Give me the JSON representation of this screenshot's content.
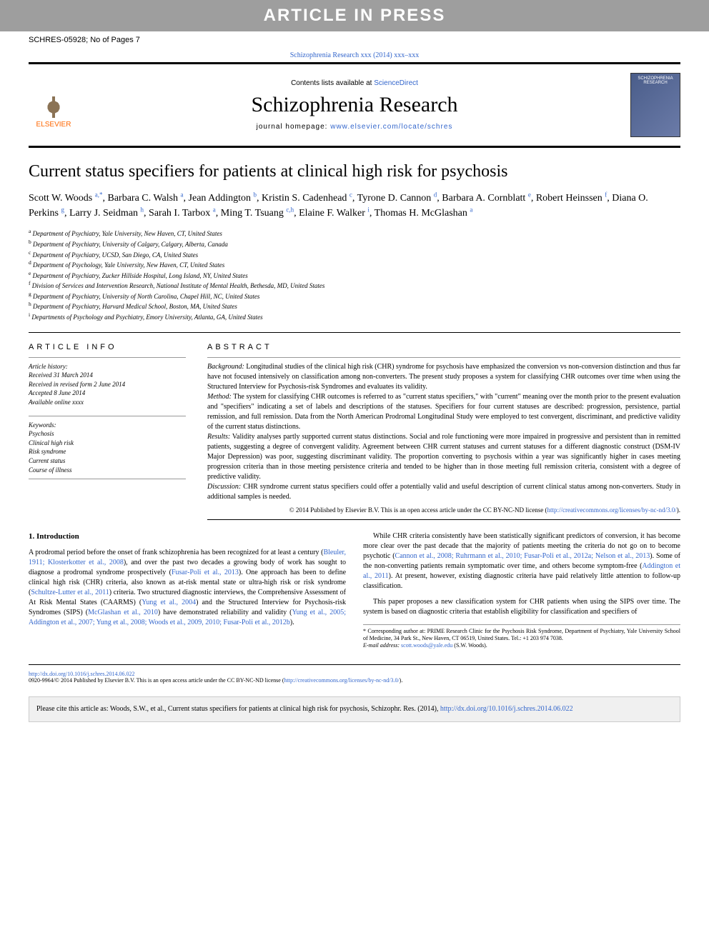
{
  "banner": "ARTICLE IN PRESS",
  "header": {
    "left": "SCHRES-05928; No of Pages 7",
    "citation": "Schizophrenia Research xxx (2014) xxx–xxx"
  },
  "journalBox": {
    "publisher": "ELSEVIER",
    "contentsLine": "Contents lists available at ",
    "contentsLink": "ScienceDirect",
    "journalName": "Schizophrenia Research",
    "homepageLabel": "journal homepage: ",
    "homepageUrl": "www.elsevier.com/locate/schres"
  },
  "title": "Current status specifiers for patients at clinical high risk for psychosis",
  "authors": [
    {
      "name": "Scott W. Woods ",
      "aff": "a,*"
    },
    {
      "name": ", Barbara C. Walsh ",
      "aff": "a"
    },
    {
      "name": ", Jean Addington ",
      "aff": "b"
    },
    {
      "name": ", Kristin S. Cadenhead ",
      "aff": "c"
    },
    {
      "name": ", Tyrone D. Cannon ",
      "aff": "d"
    },
    {
      "name": ", Barbara A. Cornblatt ",
      "aff": "e"
    },
    {
      "name": ", Robert Heinssen ",
      "aff": "f"
    },
    {
      "name": ", Diana O. Perkins ",
      "aff": "g"
    },
    {
      "name": ", Larry J. Seidman ",
      "aff": "h"
    },
    {
      "name": ", Sarah I. Tarbox ",
      "aff": "a"
    },
    {
      "name": ", Ming T. Tsuang ",
      "aff": "c,h"
    },
    {
      "name": ", Elaine F. Walker ",
      "aff": "i"
    },
    {
      "name": ", Thomas H. McGlashan ",
      "aff": "a"
    }
  ],
  "affiliations": [
    {
      "sup": "a",
      "text": " Department of Psychiatry, Yale University, New Haven, CT, United States"
    },
    {
      "sup": "b",
      "text": " Department of Psychiatry, University of Calgary, Calgary, Alberta, Canada"
    },
    {
      "sup": "c",
      "text": " Department of Psychiatry, UCSD, San Diego, CA, United States"
    },
    {
      "sup": "d",
      "text": " Department of Psychology, Yale University, New Haven, CT, United States"
    },
    {
      "sup": "e",
      "text": " Department of Psychiatry, Zucker Hillside Hospital, Long Island, NY, United States"
    },
    {
      "sup": "f",
      "text": " Division of Services and Intervention Research, National Institute of Mental Health, Bethesda, MD, United States"
    },
    {
      "sup": "g",
      "text": " Department of Psychiatry, University of North Carolina, Chapel Hill, NC, United States"
    },
    {
      "sup": "h",
      "text": " Department of Psychiatry, Harvard Medical School, Boston, MA, United States"
    },
    {
      "sup": "i",
      "text": " Departments of Psychology and Psychiatry, Emory University, Atlanta, GA, United States"
    }
  ],
  "articleInfo": {
    "header": "ARTICLE INFO",
    "historyLabel": "Article history:",
    "history": [
      "Received 31 March 2014",
      "Received in revised form 2 June 2014",
      "Accepted 8 June 2014",
      "Available online xxxx"
    ],
    "keywordsLabel": "Keywords:",
    "keywords": [
      "Psychosis",
      "Clinical high risk",
      "Risk syndrome",
      "Current status",
      "Course of illness"
    ]
  },
  "abstract": {
    "header": "ABSTRACT",
    "sections": [
      {
        "label": "Background:",
        "text": " Longitudinal studies of the clinical high risk (CHR) syndrome for psychosis have emphasized the conversion vs non-conversion distinction and thus far have not focused intensively on classification among non-converters. The present study proposes a system for classifying CHR outcomes over time when using the Structured Interview for Psychosis-risk Syndromes and evaluates its validity."
      },
      {
        "label": "Method:",
        "text": " The system for classifying CHR outcomes is referred to as \"current status specifiers,\" with \"current\" meaning over the month prior to the present evaluation and \"specifiers\" indicating a set of labels and descriptions of the statuses. Specifiers for four current statuses are described: progression, persistence, partial remission, and full remission. Data from the North American Prodromal Longitudinal Study were employed to test convergent, discriminant, and predictive validity of the current status distinctions."
      },
      {
        "label": "Results:",
        "text": " Validity analyses partly supported current status distinctions. Social and role functioning were more impaired in progressive and persistent than in remitted patients, suggesting a degree of convergent validity. Agreement between CHR current statuses and current statuses for a different diagnostic construct (DSM-IV Major Depression) was poor, suggesting discriminant validity. The proportion converting to psychosis within a year was significantly higher in cases meeting progression criteria than in those meeting persistence criteria and tended to be higher than in those meeting full remission criteria, consistent with a degree of predictive validity."
      },
      {
        "label": "Discussion:",
        "text": " CHR syndrome current status specifiers could offer a potentially valid and useful description of current clinical status among non-converters. Study in additional samples is needed."
      }
    ],
    "copyright": "© 2014 Published by Elsevier B.V. This is an open access article under the CC BY-NC-ND license (",
    "copyrightLink": "http://creativecommons.org/licenses/by-nc-nd/3.0/",
    "copyrightEnd": ")."
  },
  "intro": {
    "header": "1. Introduction",
    "p1a": "A prodromal period before the onset of frank schizophrenia has been recognized for at least a century (",
    "p1link1": "Bleuler, 1911; Klosterkotter et al., 2008",
    "p1b": "), and over the past two decades a growing body of work has sought to diagnose a prodromal syndrome prospectively (",
    "p1link2": "Fusar-Poli et al., 2013",
    "p1c": "). One approach has been to define clinical high risk (CHR) criteria, also known as at-risk mental state or ultra-high risk or risk syndrome (",
    "p1link3": "Schultze-Lutter et al., 2011",
    "p1d": ") criteria. Two structured diagnostic interviews, the Comprehensive Assessment of At Risk Mental States ",
    "p1e": "(CAARMS) (",
    "p1link4": "Yung et al., 2004",
    "p1f": ") and the Structured Interview for Psychosis-risk Syndromes (SIPS) (",
    "p1link5": "McGlashan et al., 2010",
    "p1g": ") have demonstrated reliability and validity (",
    "p1link6": "Yung et al., 2005; Addington et al., 2007; Yung et al., 2008; Woods et al., 2009, 2010; Fusar-Poli et al., 2012b",
    "p1h": ").",
    "p2a": "While CHR criteria consistently have been statistically significant predictors of conversion, it has become more clear over the past decade that the majority of patients meeting the criteria do not go on to become psychotic (",
    "p2link1": "Cannon et al., 2008; Ruhrmann et al., 2010; Fusar-Poli et al., 2012a; Nelson et al., 2013",
    "p2b": "). Some of the non-converting patients remain symptomatic over time, and others become symptom-free (",
    "p2link2": "Addington et al., 2011",
    "p2c": "). At present, however, existing diagnostic criteria have paid relatively little attention to follow-up classification.",
    "p3": "This paper proposes a new classification system for CHR patients when using the SIPS over time. The system is based on diagnostic criteria that establish eligibility for classification and specifiers of"
  },
  "correspondingNote": {
    "star": "*",
    "text": " Corresponding author at: PRIME Research Clinic for the Psychosis Risk Syndrome, Department of Psychiatry, Yale University School of Medicine, 34 Park St., New Haven, CT 06519, United States. Tel.: +1 203 974 7038.",
    "emailLabel": "E-mail address: ",
    "email": "scott.woods@yale.edu",
    "emailName": " (S.W. Woods)."
  },
  "footer": {
    "doi": "http://dx.doi.org/10.1016/j.schres.2014.06.022",
    "issn": "0920-9964/© 2014 Published by Elsevier B.V. This is an open access article under the CC BY-NC-ND license (",
    "issnLink": "http://creativecommons.org/licenses/by-nc-nd/3.0/",
    "issnEnd": ")."
  },
  "citeBox": {
    "text": "Please cite this article as: Woods, S.W., et al., Current status specifiers for patients at clinical high risk for psychosis, Schizophr. Res. (2014), ",
    "link": "http://dx.doi.org/10.1016/j.schres.2014.06.022"
  },
  "colors": {
    "link": "#3366cc",
    "bannerBg": "#9e9e9e",
    "bannerText": "#ffffff",
    "elsevierOrange": "#ff6600"
  }
}
